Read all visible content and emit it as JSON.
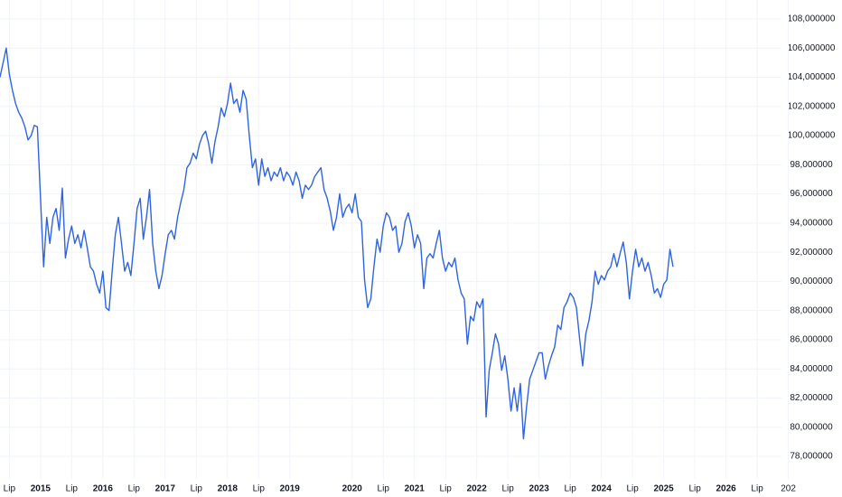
{
  "chart_data": {
    "type": "line",
    "x": [
      2014.35,
      2014.4,
      2014.45,
      2014.5,
      2014.55,
      2014.6,
      2014.65,
      2014.7,
      2014.75,
      2014.8,
      2014.85,
      2014.9,
      2014.95,
      2015.0,
      2015.05,
      2015.1,
      2015.15,
      2015.2,
      2015.25,
      2015.3,
      2015.35,
      2015.4,
      2015.45,
      2015.5,
      2015.55,
      2015.6,
      2015.65,
      2015.7,
      2015.75,
      2015.8,
      2015.85,
      2015.9,
      2015.95,
      2016.0,
      2016.05,
      2016.1,
      2016.15,
      2016.2,
      2016.25,
      2016.3,
      2016.35,
      2016.4,
      2016.45,
      2016.5,
      2016.55,
      2016.6,
      2016.65,
      2016.7,
      2016.75,
      2016.8,
      2016.85,
      2016.9,
      2016.95,
      2017.0,
      2017.05,
      2017.1,
      2017.15,
      2017.2,
      2017.25,
      2017.3,
      2017.35,
      2017.4,
      2017.45,
      2017.5,
      2017.55,
      2017.6,
      2017.65,
      2017.7,
      2017.75,
      2017.8,
      2017.85,
      2017.9,
      2017.95,
      2018.0,
      2018.05,
      2018.1,
      2018.15,
      2018.2,
      2018.25,
      2018.3,
      2018.35,
      2018.4,
      2018.45,
      2018.5,
      2018.55,
      2018.6,
      2018.65,
      2018.7,
      2018.75,
      2018.8,
      2018.85,
      2018.9,
      2018.95,
      2019.0,
      2019.05,
      2019.1,
      2019.15,
      2019.2,
      2019.25,
      2019.3,
      2019.35,
      2019.4,
      2019.45,
      2019.5,
      2019.55,
      2019.6,
      2019.65,
      2019.7,
      2019.75,
      2019.8,
      2019.85,
      2019.9,
      2019.95,
      2020.0,
      2020.05,
      2020.1,
      2020.15,
      2020.2,
      2020.25,
      2020.3,
      2020.35,
      2020.4,
      2020.45,
      2020.5,
      2020.55,
      2020.6,
      2020.65,
      2020.7,
      2020.75,
      2020.8,
      2020.85,
      2020.9,
      2020.95,
      2021.0,
      2021.05,
      2021.1,
      2021.15,
      2021.2,
      2021.25,
      2021.3,
      2021.35,
      2021.4,
      2021.45,
      2021.5,
      2021.55,
      2021.6,
      2021.65,
      2021.7,
      2021.75,
      2021.8,
      2021.85,
      2021.9,
      2021.95,
      2022.0,
      2022.05,
      2022.1,
      2022.15,
      2022.2,
      2022.25,
      2022.3,
      2022.35,
      2022.4,
      2022.45,
      2022.5,
      2022.55,
      2022.6,
      2022.65,
      2022.7,
      2022.75,
      2022.8,
      2022.85,
      2022.9,
      2022.95,
      2023.0,
      2023.05,
      2023.1,
      2023.15,
      2023.2,
      2023.25,
      2023.3,
      2023.35,
      2023.4,
      2023.45,
      2023.5,
      2023.55,
      2023.6,
      2023.65,
      2023.7,
      2023.75,
      2023.8,
      2023.85,
      2023.9,
      2023.95,
      2024.0,
      2024.05,
      2024.1,
      2024.15,
      2024.2,
      2024.25,
      2024.3,
      2024.35,
      2024.4,
      2024.45,
      2024.5,
      2024.55,
      2024.6,
      2024.65,
      2024.7,
      2024.75,
      2024.8,
      2024.85,
      2024.9,
      2024.95,
      2025.0,
      2025.05,
      2025.1,
      2025.15
    ],
    "series": [
      {
        "color": "#2f64e0",
        "values": [
          104.0,
          105.0,
          106.0,
          104.2,
          103.1,
          102.2,
          101.6,
          101.2,
          100.6,
          99.7,
          100.0,
          100.7,
          100.6,
          95.7,
          91.0,
          94.4,
          92.6,
          94.4,
          95.0,
          93.5,
          96.4,
          91.6,
          92.9,
          93.8,
          92.6,
          93.2,
          92.3,
          93.5,
          92.3,
          91.0,
          90.7,
          89.8,
          89.2,
          90.7,
          88.2,
          88.0,
          90.7,
          93.2,
          94.4,
          92.6,
          90.7,
          91.3,
          90.4,
          92.6,
          95.0,
          95.7,
          92.9,
          94.4,
          96.3,
          92.6,
          90.7,
          89.5,
          90.4,
          91.9,
          93.2,
          93.5,
          92.9,
          94.4,
          95.4,
          96.3,
          97.8,
          98.1,
          98.8,
          98.4,
          99.4,
          100.0,
          100.3,
          99.4,
          98.1,
          99.6,
          100.6,
          101.9,
          101.3,
          102.2,
          103.6,
          102.2,
          102.5,
          101.6,
          103.1,
          102.5,
          100.0,
          97.8,
          98.4,
          96.6,
          98.4,
          97.2,
          97.8,
          96.9,
          97.5,
          97.2,
          97.8,
          96.9,
          97.5,
          97.2,
          96.6,
          97.5,
          96.9,
          95.7,
          96.6,
          96.3,
          96.6,
          97.2,
          97.5,
          97.8,
          96.3,
          95.7,
          94.8,
          93.5,
          94.4,
          96.0,
          94.4,
          95.0,
          95.3,
          94.7,
          96.0,
          94.4,
          94.1,
          90.1,
          88.2,
          88.8,
          91.0,
          92.9,
          92.0,
          93.8,
          94.7,
          94.4,
          93.5,
          93.8,
          92.0,
          92.6,
          94.1,
          94.7,
          93.8,
          92.3,
          93.2,
          92.6,
          89.5,
          91.6,
          91.9,
          91.6,
          92.6,
          93.5,
          91.6,
          90.7,
          91.3,
          91.0,
          91.6,
          90.1,
          89.2,
          88.8,
          85.7,
          87.6,
          87.3,
          88.6,
          88.2,
          88.8,
          80.7,
          83.9,
          85.1,
          86.4,
          85.7,
          83.9,
          84.9,
          83.3,
          81.1,
          82.7,
          81.1,
          83.0,
          79.2,
          81.4,
          83.3,
          83.9,
          84.5,
          85.1,
          85.1,
          83.3,
          84.2,
          84.9,
          85.5,
          87.0,
          86.7,
          88.2,
          88.6,
          89.2,
          88.9,
          88.2,
          86.1,
          84.2,
          86.4,
          87.3,
          88.6,
          90.7,
          89.8,
          90.4,
          90.1,
          90.7,
          91.0,
          91.9,
          91.0,
          91.9,
          92.7,
          91.3,
          88.8,
          90.7,
          92.2,
          91.0,
          91.6,
          90.7,
          91.3,
          90.4,
          89.2,
          89.5,
          88.9,
          89.8,
          90.1,
          92.2,
          91.0
        ]
      }
    ],
    "xlim": [
      2014.35,
      2026.89
    ],
    "ylim": [
      76.45,
      109.3
    ],
    "xticks": [
      {
        "value": 2014.5,
        "label": "Lip"
      },
      2015,
      {
        "value": 2015.5,
        "label": "Lip"
      },
      2016,
      {
        "value": 2016.5,
        "label": "Lip"
      },
      2017,
      {
        "value": 2017.5,
        "label": "Lip"
      },
      2018,
      {
        "value": 2018.5,
        "label": "Lip"
      },
      2019,
      2020,
      {
        "value": 2020.5,
        "label": "Lip"
      },
      2021,
      {
        "value": 2021.5,
        "label": "Lip"
      },
      2022,
      {
        "value": 2022.5,
        "label": "Lip"
      },
      2023,
      {
        "value": 2023.5,
        "label": "Lip"
      },
      2024,
      {
        "value": 2024.5,
        "label": "Lip"
      },
      2025,
      {
        "value": 2025.5,
        "label": "Lip"
      },
      2026,
      {
        "value": 2026.5,
        "label": "Lip"
      },
      {
        "value": 2027,
        "label": "202"
      }
    ],
    "yticks": [
      {
        "value": 78,
        "label": "78,000000"
      },
      {
        "value": 80,
        "label": "80,000000"
      },
      {
        "value": 82,
        "label": "82,000000"
      },
      {
        "value": 84,
        "label": "84,000000"
      },
      {
        "value": 86,
        "label": "86,000000"
      },
      {
        "value": 88,
        "label": "88,000000"
      },
      {
        "value": 90,
        "label": "90,000000"
      },
      {
        "value": 92,
        "label": "92,000000"
      },
      {
        "value": 94,
        "label": "94,000000"
      },
      {
        "value": 96,
        "label": "96,000000"
      },
      {
        "value": 98,
        "label": "98,000000"
      },
      {
        "value": 100,
        "label": "100,000000"
      },
      {
        "value": 102,
        "label": "102,000000"
      },
      {
        "value": 104,
        "label": "104,000000"
      },
      {
        "value": 106,
        "label": "106,000000"
      },
      {
        "value": 108,
        "label": "108,000000"
      }
    ],
    "grid": true
  }
}
